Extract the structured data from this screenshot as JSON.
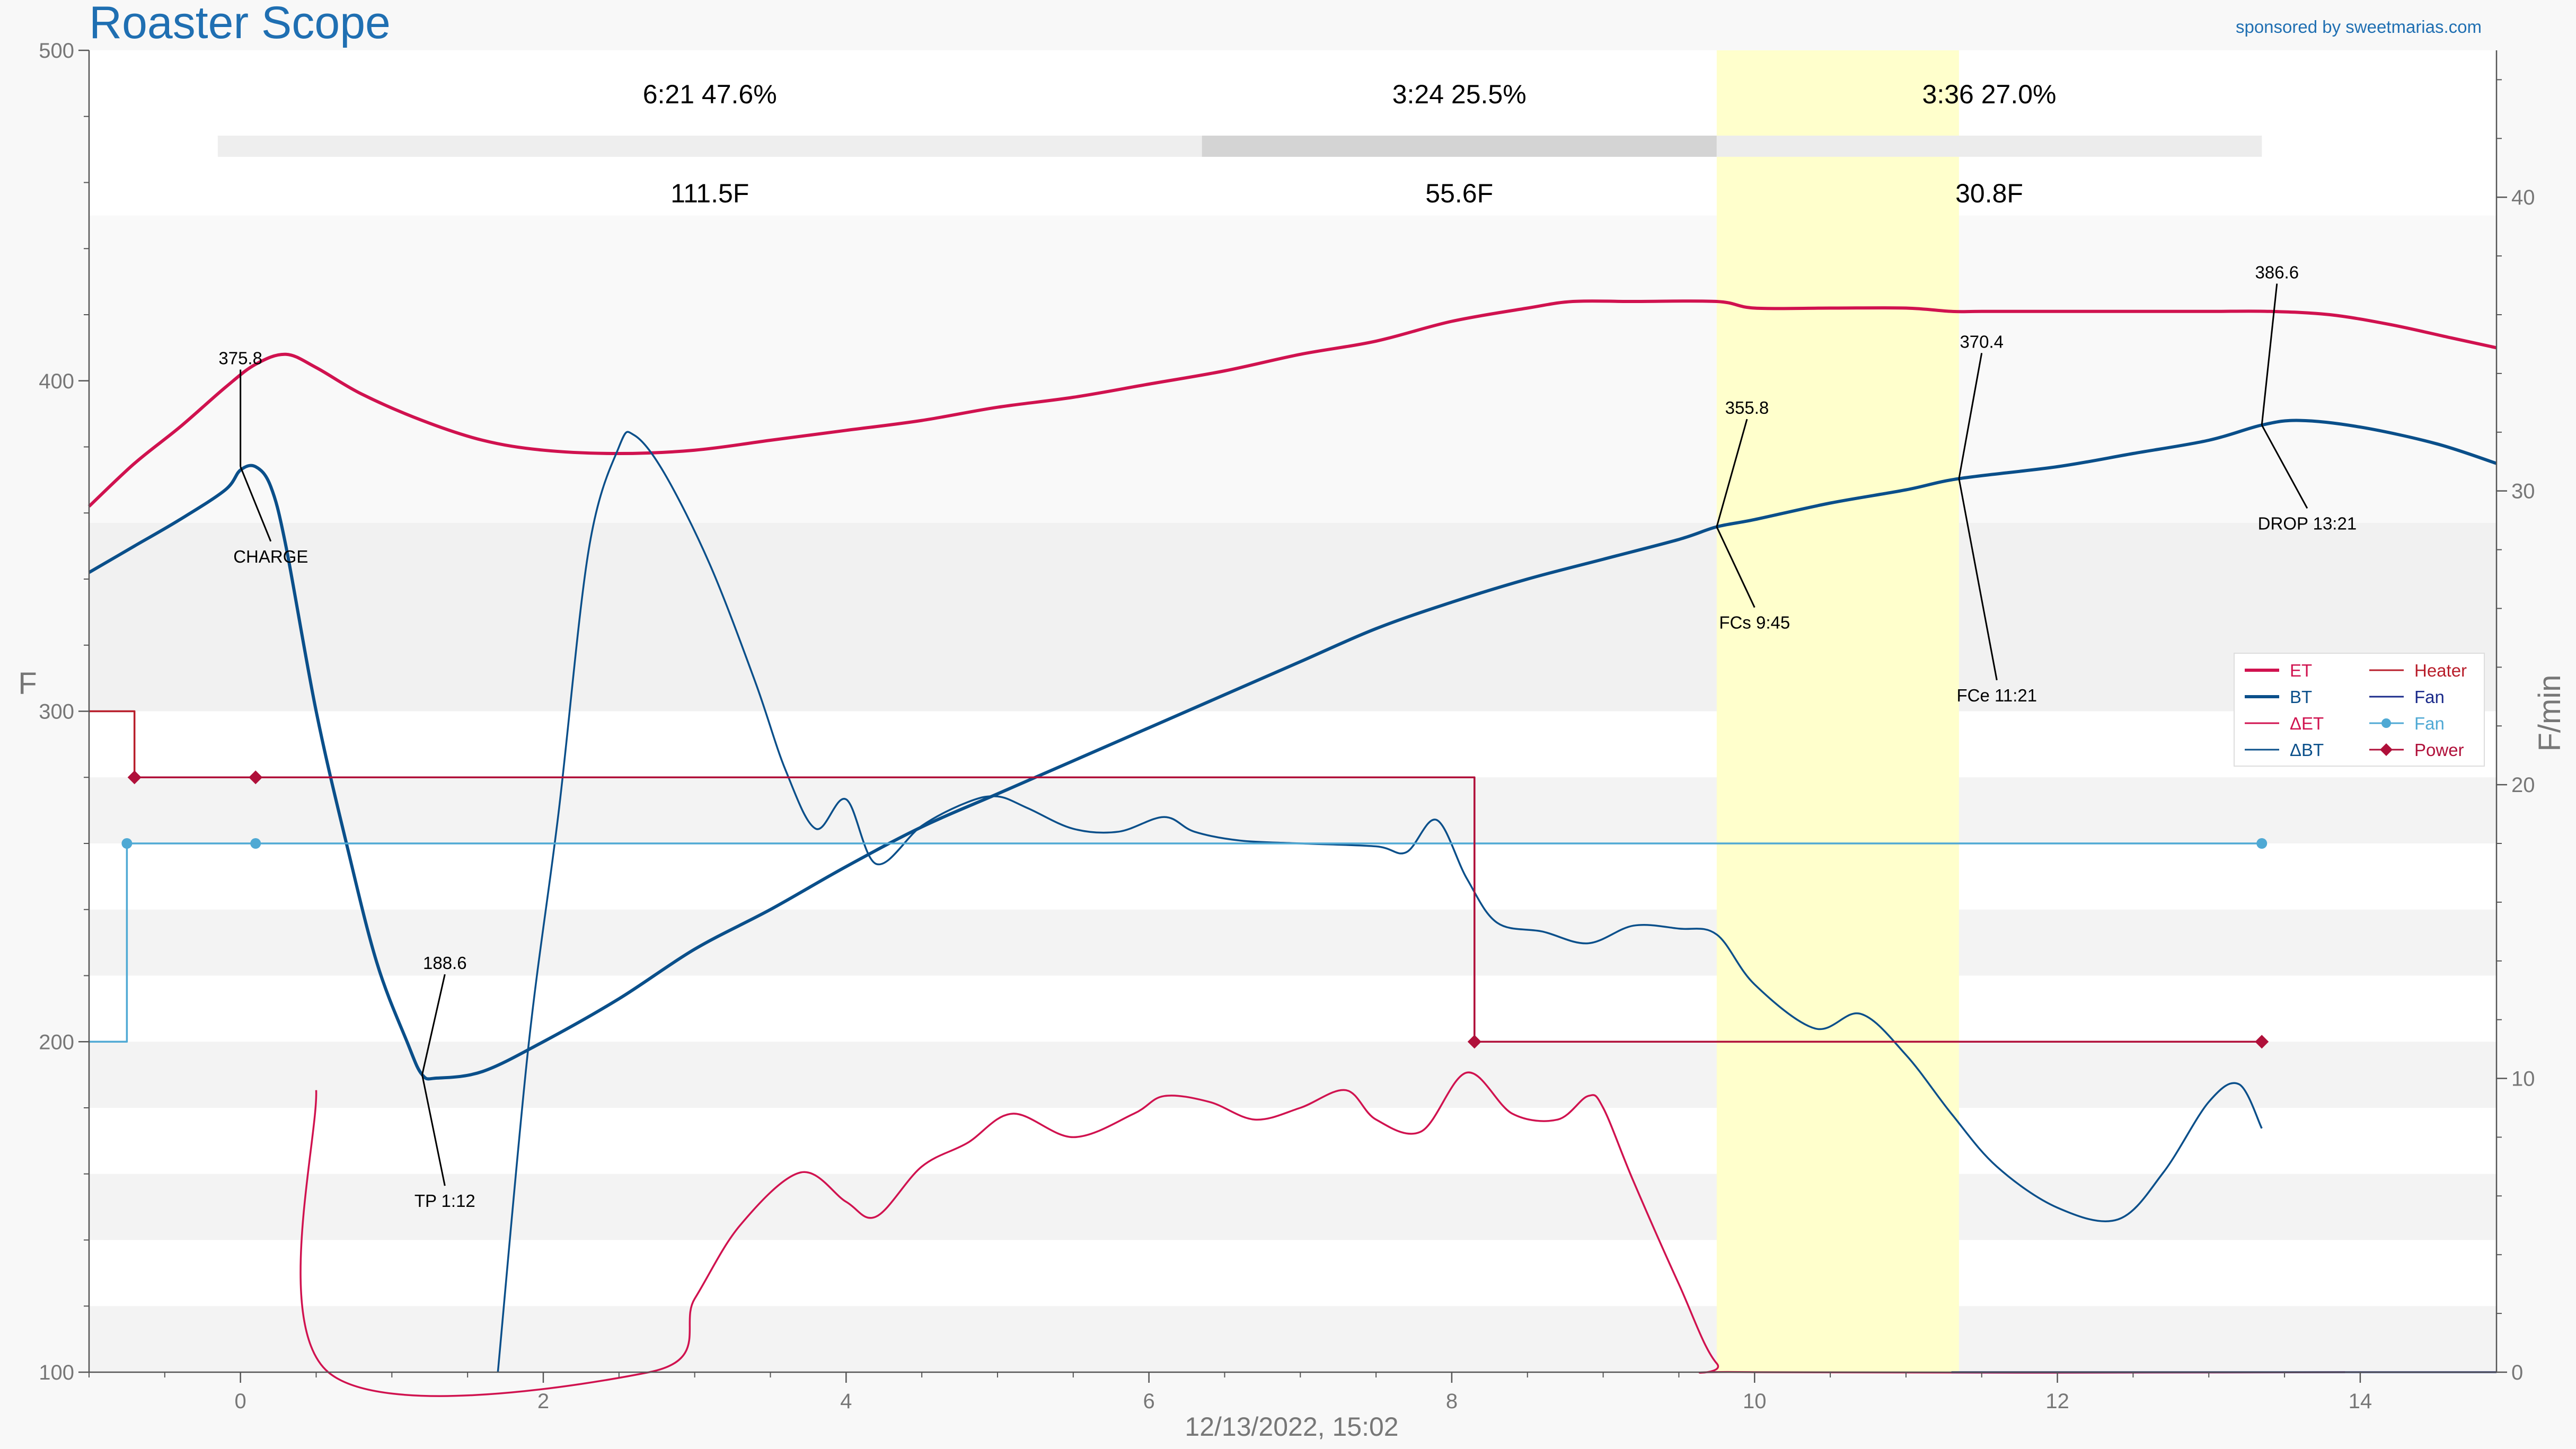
{
  "app": {
    "title": "Roaster Scope",
    "sponsor": "sponsored by sweetmarias.com",
    "timestamp": "12/13/2022, 15:02"
  },
  "colors": {
    "ET": "#d0124f",
    "BT": "#0a4f8a",
    "dET": "#d0124f",
    "dBT": "#0a4f8a",
    "Heater": "#b81d2a",
    "Fan": "#1a2a8a",
    "FanSeries": "#4fa9d4",
    "Power": "#b0103a",
    "highlight": "#ffffcc"
  },
  "phases": [
    {
      "time_pct": "6:21  47.6%",
      "rise": "111.5F",
      "start": -0.15,
      "end": 6.35
    },
    {
      "time_pct": "3:24  25.5%",
      "rise": "55.6F",
      "start": 6.35,
      "end": 9.75
    },
    {
      "time_pct": "3:36  27.0%",
      "rise": "30.8F",
      "start": 9.75,
      "end": 13.35
    }
  ],
  "chart_data": {
    "type": "line",
    "xlabel": "12/13/2022, 15:02",
    "ylabel": "F",
    "y2label": "F/min",
    "xlim": [
      -1,
      14.9
    ],
    "ylim": [
      100,
      500
    ],
    "y2lim": [
      0,
      45
    ],
    "xticks": [
      "0",
      "2",
      "4",
      "6",
      "8",
      "10",
      "12",
      "14"
    ],
    "yticks": [
      "100",
      "200",
      "300",
      "400",
      "500"
    ],
    "y2ticks": [
      "0",
      "10",
      "20",
      "30",
      "40"
    ],
    "highlight_range": [
      9.75,
      11.35
    ],
    "series": [
      {
        "name": "ET",
        "axis": "left",
        "points": [
          [
            -1,
            362
          ],
          [
            -0.7,
            375
          ],
          [
            -0.4,
            386
          ],
          [
            -0.1,
            398
          ],
          [
            0.1,
            405
          ],
          [
            0.3,
            408
          ],
          [
            0.5,
            404
          ],
          [
            0.8,
            396
          ],
          [
            1.2,
            388
          ],
          [
            1.6,
            382
          ],
          [
            2.0,
            379
          ],
          [
            2.5,
            378
          ],
          [
            3.0,
            379
          ],
          [
            3.5,
            382
          ],
          [
            4.0,
            385
          ],
          [
            4.5,
            388
          ],
          [
            5.0,
            392
          ],
          [
            5.5,
            395
          ],
          [
            6.0,
            399
          ],
          [
            6.5,
            403
          ],
          [
            7.0,
            408
          ],
          [
            7.5,
            412
          ],
          [
            8.0,
            418
          ],
          [
            8.5,
            422
          ],
          [
            8.8,
            424
          ],
          [
            9.2,
            424
          ],
          [
            9.75,
            424
          ],
          [
            10.0,
            422
          ],
          [
            10.5,
            422
          ],
          [
            11.0,
            422
          ],
          [
            11.3,
            421
          ],
          [
            11.5,
            421
          ],
          [
            12.0,
            421
          ],
          [
            12.5,
            421
          ],
          [
            13.0,
            421
          ],
          [
            13.4,
            421
          ],
          [
            13.8,
            420
          ],
          [
            14.2,
            417
          ],
          [
            14.6,
            413
          ],
          [
            14.9,
            410
          ]
        ]
      },
      {
        "name": "BT",
        "axis": "left",
        "points": [
          [
            -1,
            342
          ],
          [
            -0.7,
            350
          ],
          [
            -0.4,
            358
          ],
          [
            -0.1,
            367
          ],
          [
            0.0,
            373
          ],
          [
            0.1,
            374
          ],
          [
            0.2,
            368
          ],
          [
            0.3,
            350
          ],
          [
            0.5,
            300
          ],
          [
            0.7,
            260
          ],
          [
            0.9,
            224
          ],
          [
            1.1,
            200
          ],
          [
            1.2,
            190
          ],
          [
            1.3,
            189
          ],
          [
            1.6,
            191
          ],
          [
            2.0,
            200
          ],
          [
            2.5,
            213
          ],
          [
            3.0,
            228
          ],
          [
            3.5,
            240
          ],
          [
            4.0,
            253
          ],
          [
            4.5,
            265
          ],
          [
            5.0,
            275
          ],
          [
            5.5,
            285
          ],
          [
            6.0,
            295
          ],
          [
            6.5,
            305
          ],
          [
            7.0,
            315
          ],
          [
            7.5,
            325
          ],
          [
            8.0,
            333
          ],
          [
            8.5,
            340
          ],
          [
            9.0,
            346
          ],
          [
            9.5,
            352
          ],
          [
            9.75,
            355.8
          ],
          [
            10.0,
            358
          ],
          [
            10.5,
            363
          ],
          [
            11.0,
            367
          ],
          [
            11.35,
            370.4
          ],
          [
            12.0,
            374
          ],
          [
            12.5,
            378
          ],
          [
            13.0,
            382
          ],
          [
            13.35,
            386.6
          ],
          [
            13.6,
            388
          ],
          [
            14.0,
            386
          ],
          [
            14.5,
            381
          ],
          [
            14.9,
            375
          ]
        ]
      },
      {
        "name": "ΔET",
        "axis": "right",
        "points": [
          [
            0.5,
            9.6
          ],
          [
            0.58,
            0
          ],
          [
            2.7,
            0
          ],
          [
            3.0,
            2.5
          ],
          [
            3.3,
            5
          ],
          [
            3.7,
            6.8
          ],
          [
            4.0,
            5.8
          ],
          [
            4.2,
            5.3
          ],
          [
            4.5,
            7.0
          ],
          [
            4.8,
            7.8
          ],
          [
            5.1,
            8.8
          ],
          [
            5.5,
            8.0
          ],
          [
            5.9,
            8.8
          ],
          [
            6.1,
            9.4
          ],
          [
            6.4,
            9.2
          ],
          [
            6.7,
            8.6
          ],
          [
            7.0,
            9.0
          ],
          [
            7.3,
            9.6
          ],
          [
            7.5,
            8.6
          ],
          [
            7.8,
            8.2
          ],
          [
            8.1,
            10.2
          ],
          [
            8.4,
            8.8
          ],
          [
            8.7,
            8.6
          ],
          [
            8.9,
            9.4
          ],
          [
            9.0,
            9.0
          ],
          [
            9.2,
            6.5
          ],
          [
            9.5,
            3.0
          ],
          [
            9.75,
            0.3
          ],
          [
            10.0,
            0
          ],
          [
            13.9,
            0
          ]
        ]
      },
      {
        "name": "ΔBT",
        "axis": "right",
        "points": [
          [
            1.7,
            0
          ],
          [
            1.9,
            11
          ],
          [
            2.1,
            19
          ],
          [
            2.3,
            28
          ],
          [
            2.5,
            31.5
          ],
          [
            2.6,
            31.9
          ],
          [
            2.8,
            30.6
          ],
          [
            3.1,
            27.5
          ],
          [
            3.4,
            23.5
          ],
          [
            3.6,
            20.5
          ],
          [
            3.8,
            18.5
          ],
          [
            4.0,
            19.5
          ],
          [
            4.2,
            17.3
          ],
          [
            4.5,
            18.6
          ],
          [
            4.8,
            19.4
          ],
          [
            5.0,
            19.6
          ],
          [
            5.2,
            19.2
          ],
          [
            5.5,
            18.5
          ],
          [
            5.8,
            18.4
          ],
          [
            6.1,
            18.9
          ],
          [
            6.3,
            18.4
          ],
          [
            6.6,
            18.1
          ],
          [
            7.0,
            18.0
          ],
          [
            7.5,
            17.9
          ],
          [
            7.7,
            17.7
          ],
          [
            7.9,
            18.8
          ],
          [
            8.1,
            16.8
          ],
          [
            8.3,
            15.3
          ],
          [
            8.6,
            15.0
          ],
          [
            8.9,
            14.6
          ],
          [
            9.2,
            15.2
          ],
          [
            9.5,
            15.1
          ],
          [
            9.75,
            14.9
          ],
          [
            10.0,
            13.2
          ],
          [
            10.4,
            11.7
          ],
          [
            10.7,
            12.2
          ],
          [
            11.0,
            10.8
          ],
          [
            11.3,
            8.8
          ],
          [
            11.6,
            7.0
          ],
          [
            12.0,
            5.6
          ],
          [
            12.4,
            5.2
          ],
          [
            12.7,
            6.8
          ],
          [
            13.0,
            9.2
          ],
          [
            13.2,
            9.8
          ],
          [
            13.35,
            8.3
          ]
        ]
      },
      {
        "name": "Heater",
        "axis": "left",
        "style": "step",
        "points": [
          [
            -1,
            300
          ],
          [
            -0.7,
            300
          ],
          [
            -0.7,
            280
          ],
          [
            8.15,
            280
          ],
          [
            8.15,
            200
          ],
          [
            13.35,
            200
          ]
        ]
      },
      {
        "name": "Fan",
        "axis": "right",
        "style": "flat",
        "points": [
          [
            11.3,
            0
          ],
          [
            14.9,
            0
          ]
        ]
      },
      {
        "name": "Fan",
        "axis": "left",
        "markers": [
          -0.75,
          0.1,
          13.35
        ],
        "points": [
          [
            -1,
            200
          ],
          [
            -0.75,
            200
          ],
          [
            -0.75,
            260
          ],
          [
            13.35,
            260
          ]
        ]
      },
      {
        "name": "Power",
        "axis": "left",
        "markers": [
          -0.7,
          0.1,
          8.15,
          13.35
        ],
        "points": [
          [
            -0.7,
            280
          ],
          [
            8.15,
            280
          ],
          [
            8.15,
            200
          ],
          [
            13.35,
            200
          ]
        ]
      }
    ],
    "annotations": [
      {
        "value": "375.8",
        "event": "CHARGE",
        "x": 0.0,
        "y": 374
      },
      {
        "value": "188.6",
        "event": "TP 1:12",
        "x": 1.2,
        "y": 190
      },
      {
        "value": "355.8",
        "event": "FCs 9:45",
        "x": 9.75,
        "y": 355.8
      },
      {
        "value": "370.4",
        "event": "FCe 11:21",
        "x": 11.35,
        "y": 370.4
      },
      {
        "value": "386.6",
        "event": "DROP 13:21",
        "x": 13.35,
        "y": 386.6
      }
    ],
    "legend": {
      "placement": "right",
      "items": [
        {
          "label": "ET",
          "style": "line"
        },
        {
          "label": "Heater",
          "style": "thin"
        },
        {
          "label": "BT",
          "style": "line"
        },
        {
          "label": "Fan",
          "style": "thin"
        },
        {
          "label": "ΔET",
          "style": "thin"
        },
        {
          "label": "Fan",
          "style": "dot"
        },
        {
          "label": "ΔBT",
          "style": "thin"
        },
        {
          "label": "Power",
          "style": "diamond"
        }
      ]
    }
  }
}
